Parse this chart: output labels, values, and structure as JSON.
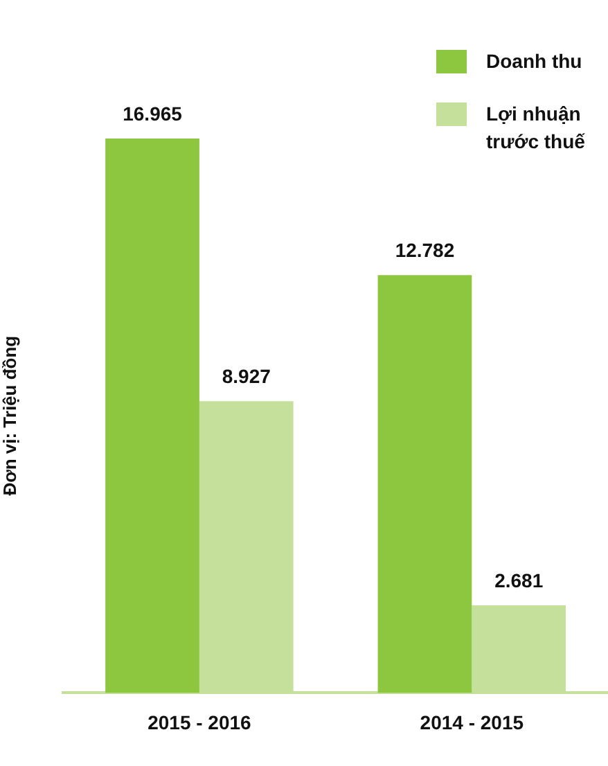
{
  "chart_data": {
    "type": "bar",
    "ylabel": "Đơn vị: Triệu đồng",
    "categories": [
      "2015 - 2016",
      "2014 - 2015"
    ],
    "series": [
      {
        "name": "Doanh thu",
        "color": "#8dc63f",
        "values": [
          16965,
          12782
        ],
        "value_labels": [
          "16.965",
          "12.782"
        ]
      },
      {
        "name": "Lợi nhuận trước thuế",
        "color": "#c5e09b",
        "values": [
          8927,
          2681
        ],
        "value_labels": [
          "8.927",
          "2.681"
        ]
      }
    ],
    "legend": "top right",
    "grid": false
  }
}
